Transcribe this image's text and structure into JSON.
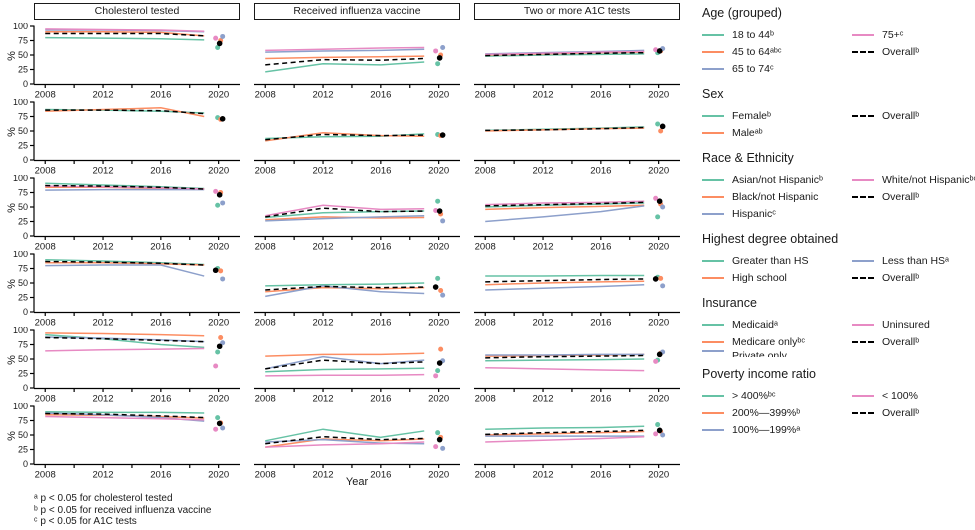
{
  "palette": {
    "green": "#66c2a5",
    "orange": "#fc8d62",
    "blue": "#8da0cb",
    "pink": "#e78ac3",
    "black": "#000000"
  },
  "footnotes": [
    "ᵃ p < 0.05 for cholesterol tested",
    "ᵇ p < 0.05 for received influenza vaccine",
    "ᶜ p < 0.05 for A1C tests"
  ],
  "legend": {
    "groups": [
      {
        "title": "Age (grouped)",
        "items": [
          {
            "label": "18 to 44ᵇ",
            "color": "green",
            "col": 0
          },
          {
            "label": "45 to 64ᵃᵇᶜ",
            "color": "orange",
            "col": 0
          },
          {
            "label": "65 to 74ᶜ",
            "color": "blue",
            "col": 0
          },
          {
            "label": "75+ᶜ",
            "color": "pink",
            "col": 1
          },
          {
            "label": "Overallᵇ",
            "color": "black",
            "dash": true,
            "col": 1
          }
        ]
      },
      {
        "title": "Sex",
        "items": [
          {
            "label": "Femaleᵇ",
            "color": "green",
            "col": 0
          },
          {
            "label": "Maleᵃᵇ",
            "color": "orange",
            "col": 0
          },
          {
            "label": "Overallᵇ",
            "color": "black",
            "dash": true,
            "col": 1
          }
        ]
      },
      {
        "title": "Race & Ethnicity",
        "items": [
          {
            "label": "Asian/not Hispanicᵇ",
            "color": "green",
            "col": 0
          },
          {
            "label": "Black/not Hispanic",
            "color": "orange",
            "col": 0
          },
          {
            "label": "Hispanicᶜ",
            "color": "blue",
            "col": 0
          },
          {
            "label": "White/not Hispanicᵇᶜ",
            "color": "pink",
            "col": 1
          },
          {
            "label": "Overallᵇ",
            "color": "black",
            "dash": true,
            "col": 1
          }
        ]
      },
      {
        "title": "Highest degree obtained",
        "items": [
          {
            "label": "Greater than HS",
            "color": "green",
            "col": 0
          },
          {
            "label": "High school",
            "color": "orange",
            "col": 0
          },
          {
            "label": "Less than HSᵃ",
            "color": "blue",
            "col": 1
          },
          {
            "label": "Overallᵇ",
            "color": "black",
            "dash": true,
            "col": 1
          }
        ]
      },
      {
        "title": "Insurance",
        "items": [
          {
            "label": "Medicaidᵃ",
            "color": "green",
            "col": 0
          },
          {
            "label": "Medicare onlyᵇᶜ",
            "color": "orange",
            "col": 0
          },
          {
            "label": "Private only",
            "color": "blue",
            "col": 0,
            "clipped": true
          },
          {
            "label": "Uninsured",
            "color": "pink",
            "col": 1
          },
          {
            "label": "Overallᵇ",
            "color": "black",
            "dash": true,
            "col": 1
          }
        ]
      },
      {
        "title": "Poverty income ratio",
        "items": [
          {
            "label": "> 400%ᵇᶜ",
            "color": "green",
            "col": 0
          },
          {
            "label": "200%—399%ᵇ",
            "color": "orange",
            "col": 0
          },
          {
            "label": "100%—199%ᵃ",
            "color": "blue",
            "col": 0
          },
          {
            "label": "< 100%",
            "color": "pink",
            "col": 1
          },
          {
            "label": "Overallᵇ",
            "color": "black",
            "dash": true,
            "col": 1
          }
        ]
      }
    ]
  },
  "chart_data": {
    "type": "line",
    "columns": [
      "Cholesterol tested",
      "Received influenza vaccine",
      "Two or more A1C tests"
    ],
    "x": [
      2008,
      2012,
      2016,
      2019
    ],
    "dot_year": 2020,
    "xticks": [
      2008,
      2012,
      2016,
      2020
    ],
    "yticks": [
      0,
      25,
      50,
      75,
      100
    ],
    "ylim": [
      0,
      100
    ],
    "xlabel": "Year",
    "ylabel": "%",
    "grid": false,
    "legend_position": "right",
    "rows": [
      {
        "group": "Age (grouped)",
        "series": [
          "18 to 44",
          "45 to 64",
          "65 to 74",
          "75+",
          "Overall"
        ],
        "colors": [
          "green",
          "orange",
          "blue",
          "pink",
          "black"
        ],
        "panels": [
          {
            "values": [
              [
                80,
                79,
                78,
                76
              ],
              [
                90,
                90,
                89,
                83
              ],
              [
                93,
                93,
                92,
                90
              ],
              [
                95,
                94,
                93,
                91
              ],
              [
                87,
                87,
                87,
                83
              ]
            ],
            "dots": [
              63,
              75,
              82,
              79,
              70
            ]
          },
          {
            "values": [
              [
                21,
                35,
                33,
                38
              ],
              [
                44,
                46,
                47,
                48
              ],
              [
                55,
                57,
                58,
                60
              ],
              [
                58,
                60,
                62,
                63
              ],
              [
                33,
                42,
                41,
                44
              ]
            ],
            "dots": [
              35,
              50,
              63,
              57,
              45
            ]
          },
          {
            "values": [
              [
                48,
                50,
                51,
                52
              ],
              [
                50,
                52,
                54,
                55
              ],
              [
                52,
                54,
                56,
                58
              ],
              [
                51,
                53,
                55,
                56
              ],
              [
                49,
                51,
                53,
                54
              ]
            ],
            "dots": [
              54,
              57,
              61,
              59,
              57
            ]
          }
        ]
      },
      {
        "group": "Sex",
        "series": [
          "Female",
          "Male",
          "Overall"
        ],
        "colors": [
          "green",
          "orange",
          "black"
        ],
        "panels": [
          {
            "values": [
              [
                87,
                86,
                84,
                81
              ],
              [
                84,
                87,
                90,
                75
              ],
              [
                86,
                86,
                85,
                80
              ]
            ],
            "dots": [
              73,
              70,
              71
            ]
          },
          {
            "values": [
              [
                37,
                40,
                41,
                45
              ],
              [
                33,
                47,
                42,
                41
              ],
              [
                35,
                44,
                42,
                43
              ]
            ],
            "dots": [
              44,
              42,
              43
            ]
          },
          {
            "values": [
              [
                51,
                53,
                55,
                57
              ],
              [
                50,
                52,
                54,
                55
              ],
              [
                51,
                52,
                54,
                56
              ]
            ],
            "dots": [
              62,
              50,
              58
            ]
          }
        ]
      },
      {
        "group": "Race & Ethnicity",
        "series": [
          "Asian/not Hispanic",
          "Black/not Hispanic",
          "Hispanic",
          "White/not Hispanic",
          "Overall"
        ],
        "colors": [
          "green",
          "orange",
          "blue",
          "pink",
          "black"
        ],
        "panels": [
          {
            "values": [
              [
                91,
                88,
                85,
                82
              ],
              [
                84,
                84,
                82,
                81
              ],
              [
                79,
                80,
                80,
                80
              ],
              [
                86,
                85,
                83,
                81
              ],
              [
                87,
                86,
                84,
                81
              ]
            ],
            "dots": [
              53,
              75,
              57,
              77,
              71
            ]
          },
          {
            "values": [
              [
                32,
                40,
                42,
                43
              ],
              [
                28,
                33,
                31,
                32
              ],
              [
                26,
                30,
                33,
                35
              ],
              [
                35,
                53,
                46,
                47
              ],
              [
                33,
                48,
                42,
                43
              ]
            ],
            "dots": [
              60,
              38,
              26,
              44,
              43
            ]
          },
          {
            "values": [
              [
                50,
                53,
                55,
                57
              ],
              [
                46,
                49,
                51,
                53
              ],
              [
                25,
                33,
                42,
                52
              ],
              [
                54,
                57,
                58,
                60
              ],
              [
                52,
                54,
                56,
                58
              ]
            ],
            "dots": [
              33,
              55,
              50,
              65,
              60
            ]
          }
        ]
      },
      {
        "group": "Highest degree obtained",
        "series": [
          "Greater than HS",
          "High school",
          "Less than HS",
          "Overall"
        ],
        "colors": [
          "green",
          "orange",
          "blue",
          "black"
        ],
        "panels": [
          {
            "values": [
              [
                90,
                88,
                85,
                82
              ],
              [
                85,
                85,
                83,
                81
              ],
              [
                80,
                81,
                81,
                62
              ],
              [
                87,
                86,
                84,
                81
              ]
            ],
            "dots": [
              75,
              71,
              57,
              72
            ]
          },
          {
            "values": [
              [
                45,
                47,
                48,
                50
              ],
              [
                35,
                42,
                40,
                42
              ],
              [
                27,
                45,
                35,
                32
              ],
              [
                38,
                44,
                42,
                43
              ]
            ],
            "dots": [
              58,
              37,
              29,
              43
            ]
          },
          {
            "values": [
              [
                62,
                62,
                63,
                63
              ],
              [
                47,
                50,
                52,
                53
              ],
              [
                38,
                41,
                44,
                47
              ],
              [
                52,
                54,
                56,
                57
              ]
            ],
            "dots": [
              60,
              58,
              45,
              57
            ]
          }
        ]
      },
      {
        "group": "Insurance",
        "series": [
          "Medicaid",
          "Medicare only",
          "Private only",
          "Uninsured",
          "Overall"
        ],
        "colors": [
          "green",
          "orange",
          "blue",
          "pink",
          "black"
        ],
        "panels": [
          {
            "values": [
              [
                92,
                85,
                75,
                70
              ],
              [
                95,
                94,
                92,
                90
              ],
              [
                88,
                86,
                83,
                80
              ],
              [
                64,
                66,
                67,
                68
              ],
              [
                87,
                85,
                82,
                80
              ]
            ],
            "dots": [
              62,
              87,
              78,
              38,
              72
            ]
          },
          {
            "values": [
              [
                28,
                32,
                33,
                34
              ],
              [
                55,
                58,
                58,
                60
              ],
              [
                33,
                54,
                42,
                48
              ],
              [
                21,
                22,
                22,
                23
              ],
              [
                33,
                48,
                42,
                45
              ]
            ],
            "dots": [
              30,
              67,
              47,
              21,
              43
            ]
          },
          {
            "values": [
              [
                47,
                48,
                49,
                50
              ],
              [
                55,
                56,
                57,
                58
              ],
              [
                57,
                57,
                58,
                58
              ],
              [
                35,
                33,
                31,
                30
              ],
              [
                52,
                54,
                55,
                56
              ]
            ],
            "dots": [
              48,
              60,
              62,
              46,
              58
            ]
          }
        ]
      },
      {
        "group": "Poverty income ratio",
        "series": [
          "> 400%",
          "200%—399%",
          "100%—199%",
          "< 100%",
          "Overall"
        ],
        "colors": [
          "green",
          "orange",
          "blue",
          "pink",
          "black"
        ],
        "panels": [
          {
            "values": [
              [
                90,
                89,
                89,
                88
              ],
              [
                85,
                84,
                82,
                79
              ],
              [
                88,
                85,
                80,
                74
              ],
              [
                82,
                80,
                78,
                76
              ],
              [
                87,
                86,
                83,
                80
              ]
            ],
            "dots": [
              80,
              71,
              62,
              60,
              70
            ]
          },
          {
            "values": [
              [
                40,
                60,
                46,
                57
              ],
              [
                29,
                43,
                40,
                43
              ],
              [
                38,
                42,
                36,
                35
              ],
              [
                29,
                33,
                35,
                38
              ],
              [
                35,
                47,
                42,
                44
              ]
            ],
            "dots": [
              54,
              46,
              27,
              30,
              42
            ]
          },
          {
            "values": [
              [
                60,
                62,
                63,
                65
              ],
              [
                50,
                52,
                54,
                56
              ],
              [
                48,
                48,
                48,
                48
              ],
              [
                38,
                41,
                44,
                47
              ],
              [
                51,
                54,
                56,
                58
              ]
            ],
            "dots": [
              68,
              56,
              50,
              52,
              58
            ]
          }
        ]
      }
    ]
  }
}
